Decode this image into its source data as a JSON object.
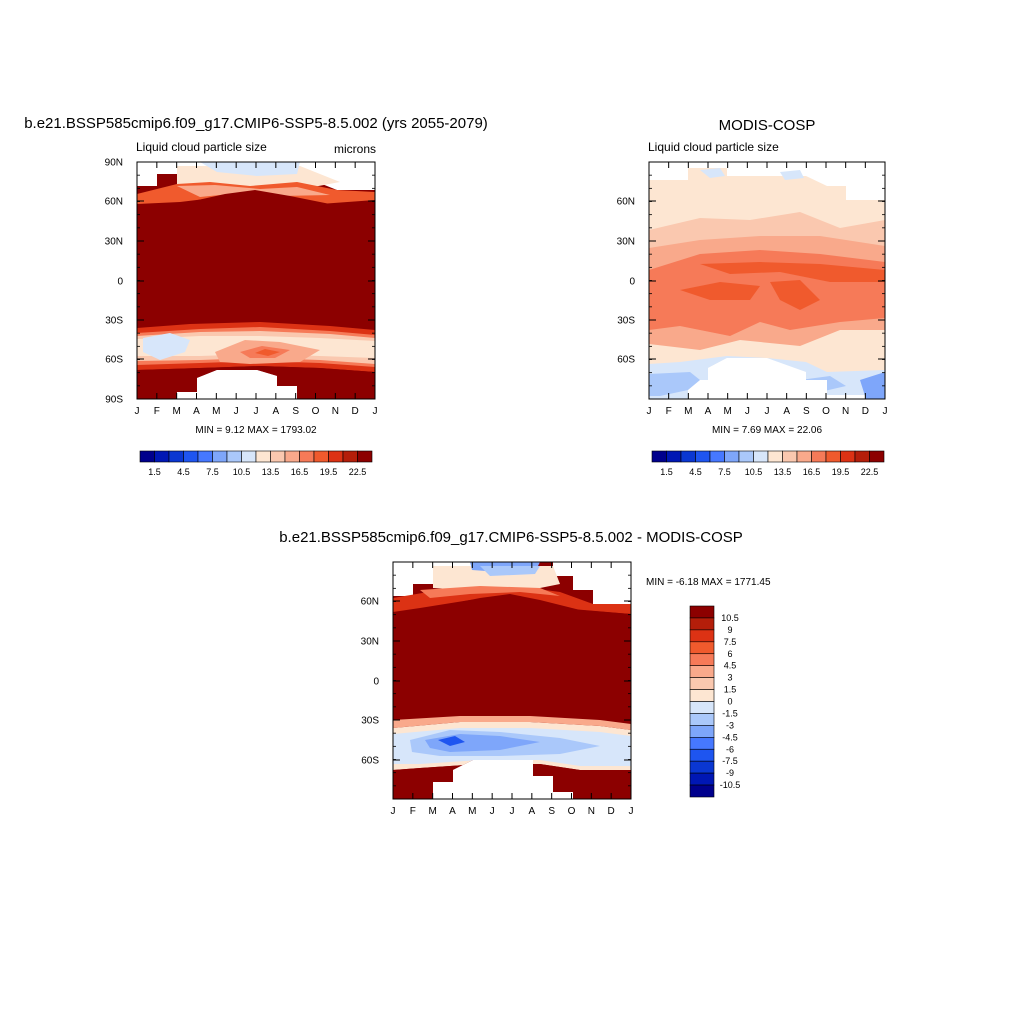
{
  "panels": {
    "model": {
      "title": "b.e21.BSSP585cmip6.f09_g17.CMIP6-SSP5-8.5.002 (yrs 2055-2079)",
      "subtitle_left": "Liquid cloud particle size",
      "subtitle_right": "microns",
      "minmax": "MIN =   9.12 MAX = 1793.02"
    },
    "obs": {
      "title": "MODIS-COSP",
      "subtitle_left": "Liquid cloud particle size",
      "minmax": "MIN =   7.69 MAX =  22.06"
    },
    "diff": {
      "title": "b.e21.BSSP585cmip6.f09_g17.CMIP6-SSP5-8.5.002 - MODIS-COSP",
      "minmax": "MIN =  -6.18 MAX = 1771.45"
    }
  },
  "chart_data": [
    {
      "type": "heatmap",
      "title": "b.e21.BSSP585cmip6.f09_g17.CMIP6-SSP5-8.5.002 (yrs 2055-2079)",
      "subtitle": "Liquid cloud particle size",
      "units": "microns",
      "x_tick_labels": [
        "J",
        "F",
        "M",
        "A",
        "M",
        "J",
        "J",
        "A",
        "S",
        "O",
        "N",
        "D",
        "J"
      ],
      "y_tick_labels": [
        "90N",
        "60N",
        "30N",
        "0",
        "30S",
        "60S",
        "90S"
      ],
      "ylim": [
        -90,
        90
      ],
      "min": 9.12,
      "max": 1793.02,
      "colorbar_labels": [
        "1.5",
        "4.5",
        "7.5",
        "10.5",
        "13.5",
        "16.5",
        "19.5",
        "22.5"
      ],
      "description_values": {
        "tropics_30S_to_65N": "> 22.5",
        "southern_ocean_40S_60S": "10.5-19.5",
        "arctic": "10.5-16.5",
        "missing": "polar night"
      }
    },
    {
      "type": "heatmap",
      "title": "MODIS-COSP",
      "subtitle": "Liquid cloud particle size",
      "x_tick_labels": [
        "J",
        "F",
        "M",
        "A",
        "M",
        "J",
        "J",
        "A",
        "S",
        "O",
        "N",
        "D",
        "J"
      ],
      "y_tick_labels": [
        "60N",
        "30N",
        "0",
        "30S",
        "60S"
      ],
      "min": 7.69,
      "max": 22.06,
      "colorbar_labels": [
        "1.5",
        "4.5",
        "7.5",
        "10.5",
        "13.5",
        "16.5",
        "19.5",
        "22.5"
      ]
    },
    {
      "type": "heatmap",
      "title": "b.e21.BSSP585cmip6.f09_g17.CMIP6-SSP5-8.5.002 - MODIS-COSP",
      "x_tick_labels": [
        "J",
        "F",
        "M",
        "A",
        "M",
        "J",
        "J",
        "A",
        "S",
        "O",
        "N",
        "D",
        "J"
      ],
      "y_tick_labels": [
        "60N",
        "30N",
        "0",
        "30S",
        "60S"
      ],
      "min": -6.18,
      "max": 1771.45,
      "colorbar_labels": [
        "10.5",
        "9",
        "7.5",
        "6",
        "4.5",
        "3",
        "1.5",
        "0",
        "-1.5",
        "-3",
        "-4.5",
        "-6",
        "-7.5",
        "-9",
        "-10.5"
      ]
    }
  ],
  "colors": {
    "seq": [
      "#00008c",
      "#0017b4",
      "#0a37d2",
      "#1e55f0",
      "#4678ff",
      "#7ea6fa",
      "#aac8fa",
      "#d7e6fa",
      "#fde6d2",
      "#fac8af",
      "#f9a98b",
      "#f67a58",
      "#f05a2d",
      "#dc3214",
      "#b41e0a",
      "#8c0000"
    ],
    "diff": [
      "#8c0000",
      "#b41e0a",
      "#dc3214",
      "#f05a2d",
      "#f67a58",
      "#f9a98b",
      "#fac8af",
      "#fde6d2",
      "#d7e6fa",
      "#aac8fa",
      "#7ea6fa",
      "#4678ff",
      "#1e55f0",
      "#0a37d2",
      "#0017b4",
      "#00008c"
    ]
  }
}
